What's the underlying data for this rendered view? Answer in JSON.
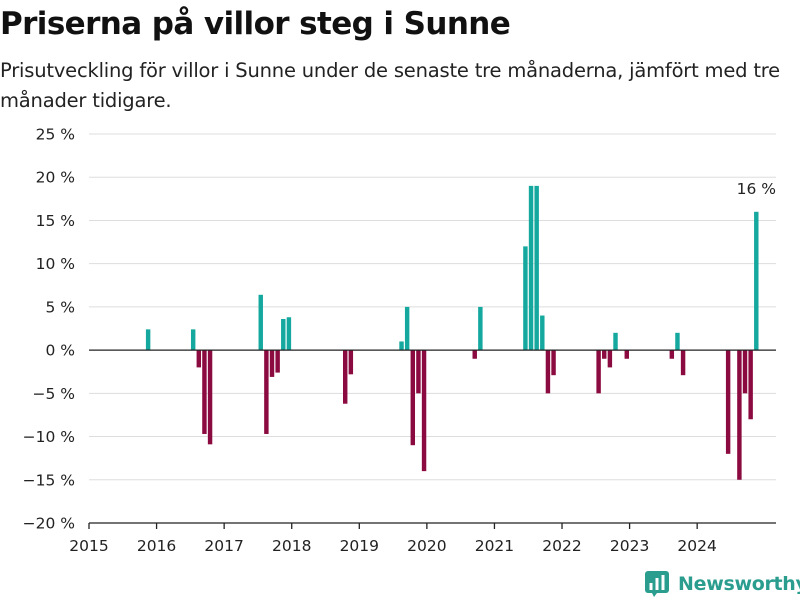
{
  "title": "Priserna på villor steg i Sunne",
  "subtitle": "Prisutveckling för villor i Sunne under de senaste tre månaderna, jämfört med tre månader tidigare.",
  "brand": {
    "name": "Newsworthy",
    "icon": "bar-chart-logo-icon",
    "color": "#2a9d8f"
  },
  "colors": {
    "positive": "#14a89e",
    "negative": "#8b0a3f",
    "grid": "#dddddd",
    "axis": "#222222"
  },
  "chart_data": {
    "type": "bar",
    "ylim": [
      -20,
      25
    ],
    "y_ticks": [
      25,
      20,
      15,
      10,
      5,
      0,
      -5,
      -10,
      -15,
      -20
    ],
    "y_tick_labels": [
      "25 %",
      "20 %",
      "15 %",
      "10 %",
      "5 %",
      "0 %",
      "−5 %",
      "−10 %",
      "−15 %",
      "−20 %"
    ],
    "x_ticks": [
      2015,
      2016,
      2017,
      2018,
      2019,
      2020,
      2021,
      2022,
      2023,
      2024
    ],
    "x_tick_labels": [
      "2015",
      "2016",
      "2017",
      "2018",
      "2019",
      "2020",
      "2021",
      "2022",
      "2023",
      "2024"
    ],
    "x_range": [
      "2015-01",
      "2025-03"
    ],
    "grid": true,
    "annotation": {
      "text": "16 %",
      "x": "2024-11",
      "y": 16
    },
    "points": [
      {
        "x": "2015-11",
        "y": 2.4
      },
      {
        "x": "2016-07",
        "y": 2.4
      },
      {
        "x": "2016-08",
        "y": -2.0
      },
      {
        "x": "2016-09",
        "y": -9.7
      },
      {
        "x": "2016-10",
        "y": -10.9
      },
      {
        "x": "2017-07",
        "y": 6.4
      },
      {
        "x": "2017-08",
        "y": -9.7
      },
      {
        "x": "2017-09",
        "y": -3.1
      },
      {
        "x": "2017-10",
        "y": -2.6
      },
      {
        "x": "2017-11",
        "y": 3.6
      },
      {
        "x": "2017-12",
        "y": 3.8
      },
      {
        "x": "2018-10",
        "y": -6.2
      },
      {
        "x": "2018-11",
        "y": -2.8
      },
      {
        "x": "2019-08",
        "y": 1.0
      },
      {
        "x": "2019-09",
        "y": 5.0
      },
      {
        "x": "2019-10",
        "y": -11.0
      },
      {
        "x": "2019-11",
        "y": -5.0
      },
      {
        "x": "2019-12",
        "y": -14.0
      },
      {
        "x": "2020-09",
        "y": -1.0
      },
      {
        "x": "2020-10",
        "y": 5.0
      },
      {
        "x": "2021-06",
        "y": 12.0
      },
      {
        "x": "2021-07",
        "y": 19.0
      },
      {
        "x": "2021-08",
        "y": 19.0
      },
      {
        "x": "2021-09",
        "y": 4.0
      },
      {
        "x": "2021-10",
        "y": -5.0
      },
      {
        "x": "2021-11",
        "y": -2.9
      },
      {
        "x": "2022-07",
        "y": -5.0
      },
      {
        "x": "2022-08",
        "y": -1.0
      },
      {
        "x": "2022-09",
        "y": -2.0
      },
      {
        "x": "2022-10",
        "y": 2.0
      },
      {
        "x": "2022-12",
        "y": -1.0
      },
      {
        "x": "2023-08",
        "y": -1.0
      },
      {
        "x": "2023-09",
        "y": 2.0
      },
      {
        "x": "2023-10",
        "y": -2.9
      },
      {
        "x": "2024-06",
        "y": -12.0
      },
      {
        "x": "2024-08",
        "y": -15.0
      },
      {
        "x": "2024-09",
        "y": -5.0
      },
      {
        "x": "2024-10",
        "y": -8.0
      },
      {
        "x": "2024-11",
        "y": 16.0
      }
    ]
  }
}
